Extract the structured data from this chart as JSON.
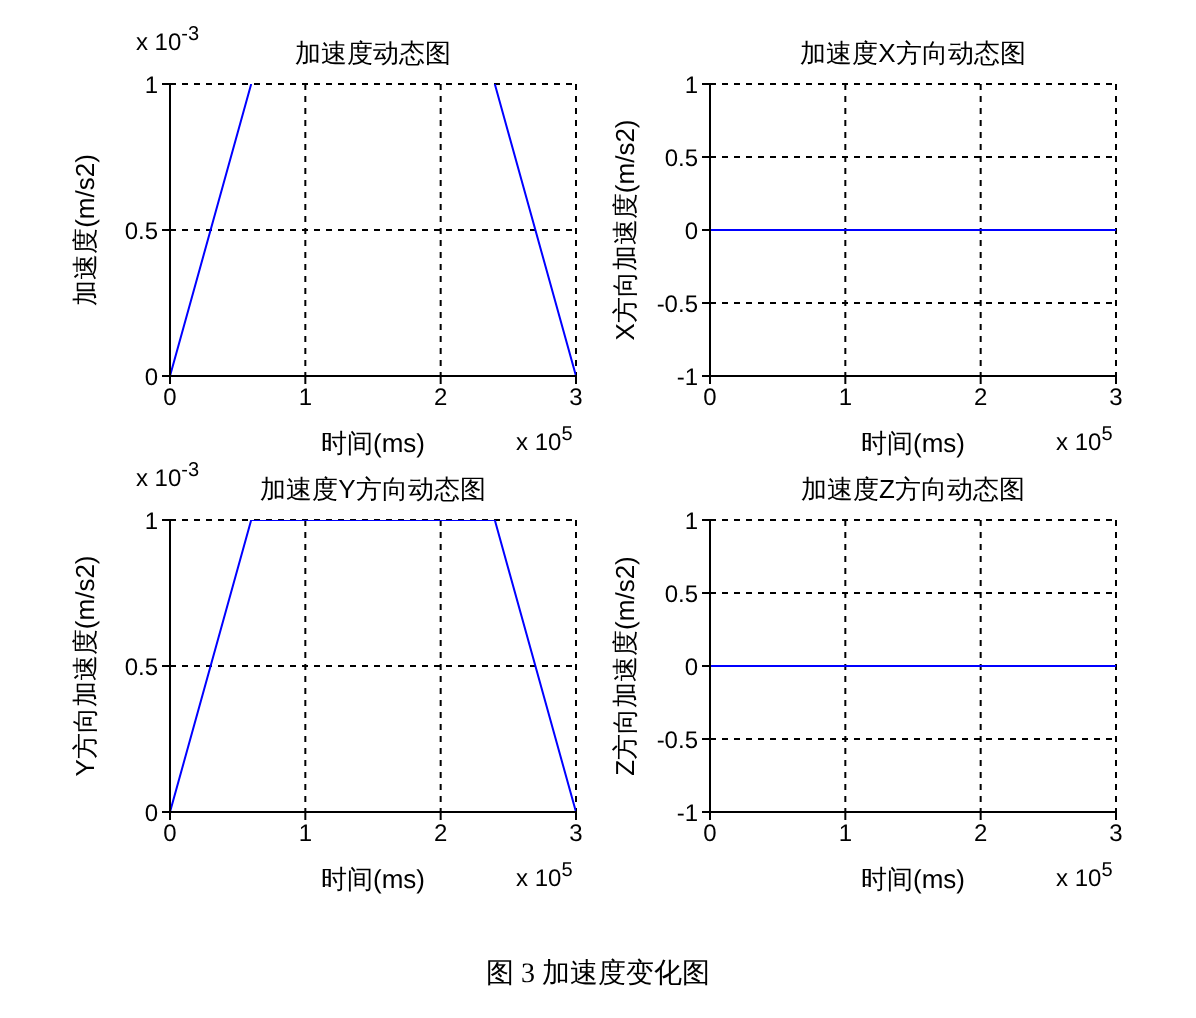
{
  "chart_data": [
    {
      "type": "line",
      "title": "加速度动态图",
      "xlabel": "时间(ms)",
      "ylabel": "加速度(m/s2)",
      "x": [
        0,
        0.6,
        1.5,
        2.4,
        3
      ],
      "series": [
        {
          "color": "#0000ff",
          "values": [
            0,
            1,
            null,
            1,
            0
          ]
        }
      ],
      "xlim": [
        0,
        3
      ],
      "xticks": [
        0,
        1,
        2,
        3
      ],
      "ylim": [
        0,
        1
      ],
      "yticks": [
        0,
        0.5,
        1
      ],
      "grid": true,
      "annotations": [
        "x 10$^{-3}$",
        "x 10$^{5}$"
      ]
    },
    {
      "type": "line",
      "title": "加速度X方向动态图",
      "xlabel": "时间(ms)",
      "ylabel": "X方向加速度(m/s2)",
      "x": [
        0,
        3
      ],
      "series": [
        {
          "color": "#0000ff",
          "values": [
            0,
            0
          ]
        }
      ],
      "xlim": [
        0,
        3
      ],
      "xticks": [
        0,
        1,
        2,
        3
      ],
      "ylim": [
        -1,
        1
      ],
      "yticks": [
        -1,
        -0.5,
        0,
        0.5,
        1
      ],
      "grid": true,
      "annotations": [
        "x 10$^{5}$"
      ]
    },
    {
      "type": "line",
      "title": "加速度Y方向动态图",
      "xlabel": "时间(ms)",
      "ylabel": "Y方向加速度(m/s2)",
      "x": [
        0,
        0.6,
        2.4,
        3
      ],
      "series": [
        {
          "color": "#0000ff",
          "values": [
            0,
            1,
            1,
            0
          ]
        }
      ],
      "xlim": [
        0,
        3
      ],
      "xticks": [
        0,
        1,
        2,
        3
      ],
      "ylim": [
        0,
        1
      ],
      "yticks": [
        0,
        0.5,
        1
      ],
      "grid": true,
      "annotations": [
        "x 10$^{-3}$",
        "x 10$^{5}$"
      ]
    },
    {
      "type": "line",
      "title": "加速度Z方向动态图",
      "xlabel": "时间(ms)",
      "ylabel": "Z方向加速度(m/s2)",
      "x": [
        0,
        3
      ],
      "series": [
        {
          "color": "#0000ff",
          "values": [
            0,
            0
          ]
        }
      ],
      "xlim": [
        0,
        3
      ],
      "xticks": [
        0,
        1,
        2,
        3
      ],
      "ylim": [
        -1,
        1
      ],
      "yticks": [
        -1,
        -0.5,
        0,
        0.5,
        1
      ],
      "grid": true,
      "annotations": [
        "x 10$^{5}$"
      ]
    },
    {
      "type": "other",
      "title": "图 3 加速度变化图"
    }
  ]
}
